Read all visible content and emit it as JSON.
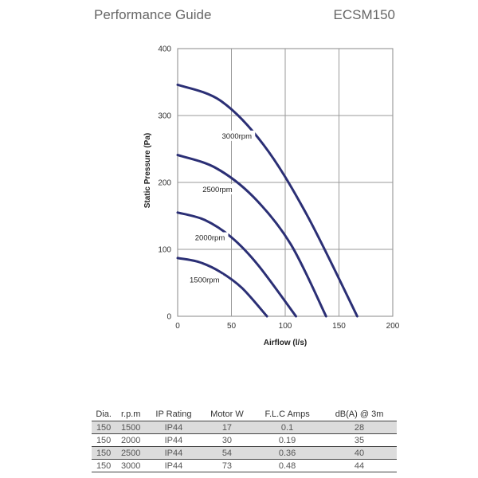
{
  "header": {
    "title": "Performance Guide",
    "model": "ECSM150"
  },
  "chart_data": {
    "type": "line",
    "title": "",
    "xlabel": "Airflow (l/s)",
    "ylabel": "Static Pressure (Pa)",
    "xlim": [
      0,
      200
    ],
    "ylim": [
      0,
      400
    ],
    "xticks": [
      "0",
      "50",
      "100",
      "150",
      "200"
    ],
    "yticks": [
      "0",
      "100",
      "200",
      "300",
      "400"
    ],
    "grid": true,
    "line_color": "#2b2f75",
    "series": [
      {
        "name": "1500rpm",
        "label_at": [
          25,
          53
        ],
        "points": [
          [
            0,
            87
          ],
          [
            20,
            81
          ],
          [
            40,
            66
          ],
          [
            60,
            42
          ],
          [
            83,
            0
          ]
        ]
      },
      {
        "name": "2000rpm",
        "label_at": [
          30,
          116
        ],
        "points": [
          [
            0,
            155
          ],
          [
            25,
            144
          ],
          [
            50,
            118
          ],
          [
            75,
            76
          ],
          [
            110,
            0
          ]
        ]
      },
      {
        "name": "2500rpm",
        "label_at": [
          37,
          188
        ],
        "points": [
          [
            0,
            241
          ],
          [
            35,
            222
          ],
          [
            70,
            179
          ],
          [
            105,
            108
          ],
          [
            138,
            0
          ]
        ]
      },
      {
        "name": "3000rpm",
        "label_at": [
          55,
          268
        ],
        "points": [
          [
            0,
            346
          ],
          [
            40,
            322
          ],
          [
            80,
            256
          ],
          [
            120,
            152
          ],
          [
            167,
            0
          ]
        ]
      }
    ]
  },
  "table": {
    "headers": [
      "Dia.",
      "r.p.m",
      "IP Rating",
      "Motor W",
      "F.L.C Amps",
      "dB(A) @ 3m"
    ],
    "rows": [
      [
        "150",
        "1500",
        "IP44",
        "17",
        "0.1",
        "28"
      ],
      [
        "150",
        "2000",
        "IP44",
        "30",
        "0.19",
        "35"
      ],
      [
        "150",
        "2500",
        "IP44",
        "54",
        "0.36",
        "40"
      ],
      [
        "150",
        "3000",
        "IP44",
        "73",
        "0.48",
        "44"
      ]
    ]
  }
}
